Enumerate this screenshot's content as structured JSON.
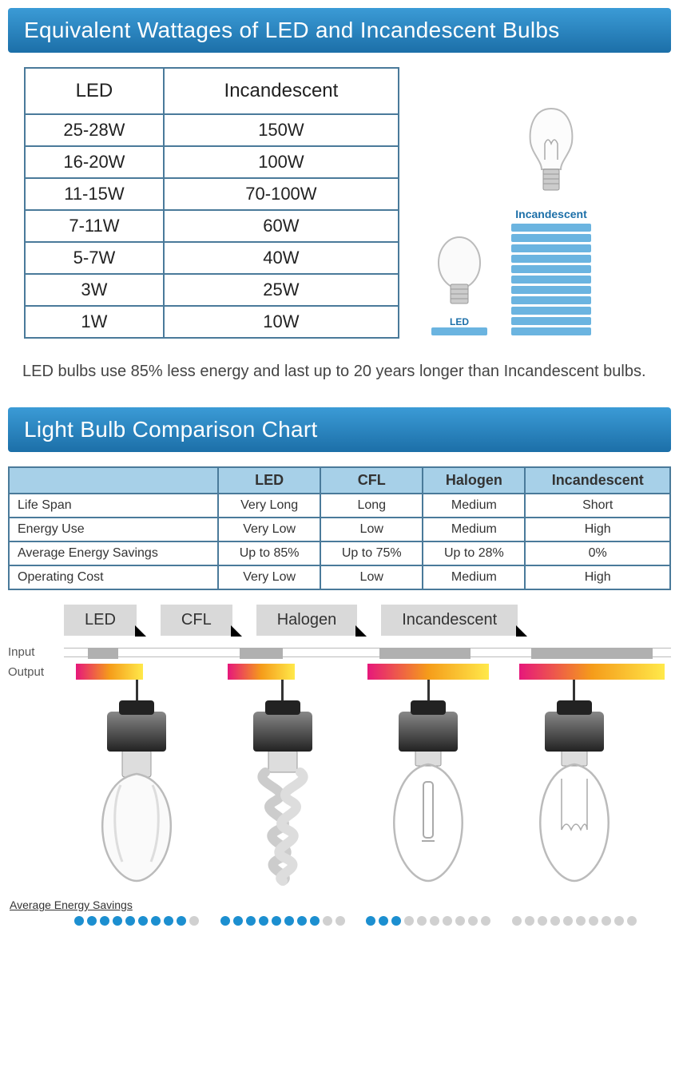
{
  "header1": "Equivalent Wattages of LED and Incandescent Bulbs",
  "wattage": {
    "columns": [
      "LED",
      "Incandescent"
    ],
    "rows": [
      [
        "25-28W",
        "150W"
      ],
      [
        "16-20W",
        "100W"
      ],
      [
        "11-15W",
        "70-100W"
      ],
      [
        "7-11W",
        "60W"
      ],
      [
        "5-7W",
        "40W"
      ],
      [
        "3W",
        "25W"
      ],
      [
        "1W",
        "10W"
      ]
    ]
  },
  "bulb_compare": {
    "led_label": "LED",
    "inc_label": "Incandescent",
    "led_bars": 1,
    "inc_bars": 11,
    "bar_color": "#6bb4e0"
  },
  "caption": "LED bulbs use 85% less energy and last up to 20 years longer than Incandescent bulbs.",
  "header2": "Light Bulb Comparison Chart",
  "comparison": {
    "columns": [
      "",
      "LED",
      "CFL",
      "Halogen",
      "Incandescent"
    ],
    "rows": [
      [
        "Life Span",
        "Very Long",
        "Long",
        "Medium",
        "Short"
      ],
      [
        "Energy Use",
        "Very Low",
        "Low",
        "Medium",
        "High"
      ],
      [
        "Average Energy Savings",
        "Up to 85%",
        "Up to 75%",
        "Up to 28%",
        "0%"
      ],
      [
        "Operating Cost",
        "Very Low",
        "Low",
        "Medium",
        "High"
      ]
    ]
  },
  "io": {
    "tabs": [
      "LED",
      "CFL",
      "Halogen",
      "Incandescent"
    ],
    "input_label": "Input",
    "output_label": "Output",
    "input_segments": [
      {
        "left_pct": 4,
        "width_pct": 5
      },
      {
        "left_pct": 29,
        "width_pct": 7
      },
      {
        "left_pct": 52,
        "width_pct": 15
      },
      {
        "left_pct": 77,
        "width_pct": 20
      }
    ],
    "output_segments": [
      {
        "left_pct": 2,
        "width_pct": 11
      },
      {
        "left_pct": 27,
        "width_pct": 11
      },
      {
        "left_pct": 50,
        "width_pct": 20
      },
      {
        "left_pct": 75,
        "width_pct": 24
      }
    ]
  },
  "savings": {
    "label": "Average Energy Savings",
    "total_dots": 10,
    "filled": [
      9,
      8,
      3,
      0
    ],
    "on_color": "#1c8fd0",
    "off_color": "#d0d0d0"
  },
  "colors": {
    "banner_top": "#3b9bd6",
    "banner_bottom": "#1c6fa8",
    "table_border": "#4a7a9a",
    "table_header_bg": "#a7d0e8",
    "tab_bg": "#d9d9d9",
    "input_seg": "#b0b0b0"
  }
}
